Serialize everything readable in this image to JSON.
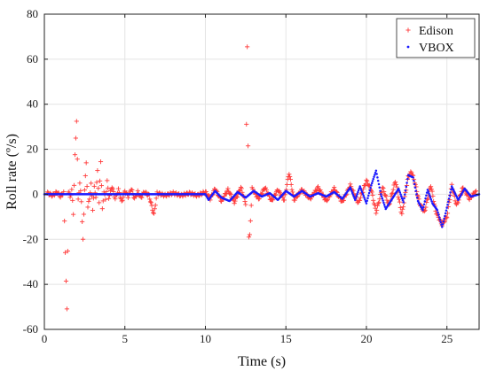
{
  "chart_data": {
    "type": "scatter",
    "xlabel": "Time (s)",
    "ylabel": "Roll rate (º/s)",
    "xlim": [
      0,
      27
    ],
    "ylim": [
      -60,
      80
    ],
    "xticks": [
      0,
      5,
      10,
      15,
      20,
      25
    ],
    "yticks": [
      -60,
      -40,
      -20,
      0,
      20,
      40,
      60,
      80
    ],
    "grid": true,
    "legend_position": "top-right",
    "series": [
      {
        "name": "Edison",
        "marker": "plus",
        "color": "#ff3b3b",
        "points": [
          [
            0.2,
            0.5
          ],
          [
            0.5,
            -0.5
          ],
          [
            0.8,
            1.0
          ],
          [
            1.0,
            -1.0
          ],
          [
            1.2,
            0.8
          ],
          [
            1.4,
            -51.5
          ],
          [
            1.5,
            1.5
          ],
          [
            1.6,
            -1.5
          ],
          [
            1.7,
            2.0
          ],
          [
            1.8,
            -8.5
          ],
          [
            1.9,
            17.0
          ],
          [
            2.0,
            33.0
          ],
          [
            2.1,
            -2.5
          ],
          [
            2.2,
            5.0
          ],
          [
            2.3,
            -3.0
          ],
          [
            2.4,
            -20.5
          ],
          [
            2.5,
            2.5
          ],
          [
            2.6,
            13.5
          ],
          [
            2.7,
            -5.5
          ],
          [
            2.8,
            -2.0
          ],
          [
            2.9,
            4.5
          ],
          [
            3.0,
            -6.5
          ],
          [
            3.1,
            3.0
          ],
          [
            3.2,
            -1.0
          ],
          [
            3.3,
            10.5
          ],
          [
            3.4,
            -4.0
          ],
          [
            3.5,
            15.0
          ],
          [
            3.6,
            -7.0
          ],
          [
            3.7,
            1.5
          ],
          [
            3.8,
            -2.5
          ],
          [
            3.9,
            6.0
          ],
          [
            4.0,
            -1.5
          ],
          [
            4.2,
            3.5
          ],
          [
            4.4,
            -2.0
          ],
          [
            4.6,
            2.0
          ],
          [
            4.8,
            -3.5
          ],
          [
            5.0,
            1.5
          ],
          [
            5.2,
            -1.0
          ],
          [
            5.4,
            2.5
          ],
          [
            5.6,
            -2.0
          ],
          [
            5.8,
            1.0
          ],
          [
            6.0,
            -1.5
          ],
          [
            6.2,
            1.0
          ],
          [
            6.5,
            -0.5
          ],
          [
            6.8,
            -9.0
          ],
          [
            7.0,
            0.5
          ],
          [
            7.5,
            -0.5
          ],
          [
            8.0,
            0.5
          ],
          [
            8.5,
            -0.5
          ],
          [
            9.0,
            0.5
          ],
          [
            9.5,
            -0.5
          ],
          [
            10.0,
            1.0
          ],
          [
            10.3,
            -2.0
          ],
          [
            10.6,
            2.5
          ],
          [
            11.0,
            -3.0
          ],
          [
            11.4,
            2.0
          ],
          [
            11.8,
            -3.5
          ],
          [
            12.2,
            3.0
          ],
          [
            12.5,
            -4.0
          ],
          [
            12.6,
            65.5
          ],
          [
            12.65,
            21.5
          ],
          [
            12.7,
            -19.0
          ],
          [
            12.75,
            -18.5
          ],
          [
            12.9,
            2.5
          ],
          [
            13.3,
            -2.0
          ],
          [
            13.7,
            3.0
          ],
          [
            14.1,
            -3.0
          ],
          [
            14.5,
            2.0
          ],
          [
            14.9,
            -2.5
          ],
          [
            15.2,
            9.5
          ],
          [
            15.5,
            -2.5
          ],
          [
            16.0,
            2.0
          ],
          [
            16.5,
            -2.0
          ],
          [
            17.0,
            3.0
          ],
          [
            17.5,
            -3.0
          ],
          [
            18.0,
            2.5
          ],
          [
            18.5,
            -3.5
          ],
          [
            19.0,
            4.0
          ],
          [
            19.5,
            -4.0
          ],
          [
            20.0,
            6.0
          ],
          [
            20.3,
            2.0
          ],
          [
            20.6,
            -8.0
          ],
          [
            21.0,
            3.0
          ],
          [
            21.4,
            -5.0
          ],
          [
            21.8,
            6.0
          ],
          [
            22.2,
            -9.0
          ],
          [
            22.6,
            8.0
          ],
          [
            22.8,
            10.0
          ],
          [
            23.0,
            5.5
          ],
          [
            23.3,
            -4.0
          ],
          [
            23.6,
            -8.0
          ],
          [
            24.0,
            4.0
          ],
          [
            24.3,
            -7.5
          ],
          [
            24.7,
            -13.5
          ],
          [
            25.0,
            -10.0
          ],
          [
            25.3,
            4.0
          ],
          [
            25.6,
            -5.0
          ],
          [
            26.0,
            3.0
          ],
          [
            26.4,
            -2.0
          ],
          [
            26.8,
            1.5
          ]
        ]
      },
      {
        "name": "VBOX",
        "marker": "dot",
        "color": "#1a1aff",
        "points": [
          [
            0,
            0
          ],
          [
            10.0,
            0
          ],
          [
            10.2,
            -2.5
          ],
          [
            10.6,
            1.5
          ],
          [
            11.0,
            -1.5
          ],
          [
            11.5,
            -3.0
          ],
          [
            12.0,
            1.0
          ],
          [
            12.5,
            -1.5
          ],
          [
            13.0,
            1.5
          ],
          [
            13.5,
            -1.0
          ],
          [
            14.0,
            0.5
          ],
          [
            14.5,
            -2.5
          ],
          [
            15.0,
            1.5
          ],
          [
            15.5,
            -1.0
          ],
          [
            16.0,
            1.5
          ],
          [
            16.5,
            -1.0
          ],
          [
            17.0,
            0.5
          ],
          [
            17.5,
            -1.0
          ],
          [
            18.0,
            1.0
          ],
          [
            18.5,
            -2.0
          ],
          [
            19.0,
            3.0
          ],
          [
            19.3,
            -2.5
          ],
          [
            19.6,
            3.5
          ],
          [
            20.0,
            -4.0
          ],
          [
            20.3,
            4.0
          ],
          [
            20.6,
            10.5
          ],
          [
            20.9,
            0
          ],
          [
            21.2,
            -6.5
          ],
          [
            21.6,
            -2.0
          ],
          [
            22.0,
            2.5
          ],
          [
            22.3,
            -3.5
          ],
          [
            22.6,
            8.5
          ],
          [
            22.9,
            7.5
          ],
          [
            23.2,
            -3.0
          ],
          [
            23.5,
            -7.0
          ],
          [
            23.8,
            2.0
          ],
          [
            24.1,
            -4.0
          ],
          [
            24.4,
            -7.0
          ],
          [
            24.7,
            -14.5
          ],
          [
            25.0,
            -6.0
          ],
          [
            25.3,
            3.5
          ],
          [
            25.7,
            -2.5
          ],
          [
            26.1,
            2.5
          ],
          [
            26.5,
            -1.0
          ],
          [
            27.0,
            0
          ]
        ]
      }
    ]
  }
}
